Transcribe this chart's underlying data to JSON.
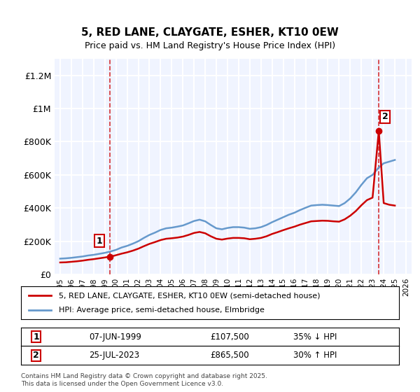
{
  "title": "5, RED LANE, CLAYGATE, ESHER, KT10 0EW",
  "subtitle": "Price paid vs. HM Land Registry's House Price Index (HPI)",
  "ylabel_ticks": [
    "£0",
    "£200K",
    "£400K",
    "£600K",
    "£800K",
    "£1M",
    "£1.2M"
  ],
  "ytick_vals": [
    0,
    200000,
    400000,
    600000,
    800000,
    1000000,
    1200000
  ],
  "ylim": [
    0,
    1300000
  ],
  "xlim_start": 1994.5,
  "xlim_end": 2026.5,
  "transaction1": {
    "date": "07-JUN-1999",
    "price": 107500,
    "year": 1999.44,
    "label": "1",
    "pct": "35% ↓ HPI"
  },
  "transaction2": {
    "date": "25-JUL-2023",
    "price": 865500,
    "year": 2023.56,
    "label": "2",
    "pct": "30% ↑ HPI"
  },
  "legend_line1": "5, RED LANE, CLAYGATE, ESHER, KT10 0EW (semi-detached house)",
  "legend_line2": "HPI: Average price, semi-detached house, Elmbridge",
  "table_row1": "07-JUN-1999        £107,500        35% ↓ HPI",
  "table_row2": "25-JUL-2023        £865,500        30% ↑ HPI",
  "footnote": "Contains HM Land Registry data © Crown copyright and database right 2025.\nThis data is licensed under the Open Government Licence v3.0.",
  "line_color_red": "#cc0000",
  "line_color_blue": "#6699cc",
  "bg_color": "#f0f4ff",
  "grid_color": "#ffffff",
  "vline_color": "#cc0000",
  "hpi_years": [
    1995,
    1995.5,
    1996,
    1996.5,
    1997,
    1997.5,
    1998,
    1998.5,
    1999,
    1999.5,
    2000,
    2000.5,
    2001,
    2001.5,
    2002,
    2002.5,
    2003,
    2003.5,
    2004,
    2004.5,
    2005,
    2005.5,
    2006,
    2006.5,
    2007,
    2007.5,
    2008,
    2008.5,
    2009,
    2009.5,
    2010,
    2010.5,
    2011,
    2011.5,
    2012,
    2012.5,
    2013,
    2013.5,
    2014,
    2014.5,
    2015,
    2015.5,
    2016,
    2016.5,
    2017,
    2017.5,
    2018,
    2018.5,
    2019,
    2019.5,
    2020,
    2020.5,
    2021,
    2021.5,
    2022,
    2022.5,
    2023,
    2023.5,
    2024,
    2024.5,
    2025
  ],
  "hpi_values": [
    95000,
    97000,
    100000,
    104000,
    108000,
    114000,
    118000,
    124000,
    130000,
    138000,
    148000,
    162000,
    172000,
    185000,
    200000,
    220000,
    238000,
    252000,
    268000,
    278000,
    282000,
    288000,
    295000,
    308000,
    322000,
    330000,
    320000,
    298000,
    278000,
    272000,
    280000,
    285000,
    285000,
    282000,
    275000,
    278000,
    285000,
    298000,
    315000,
    330000,
    345000,
    360000,
    372000,
    388000,
    402000,
    415000,
    418000,
    420000,
    418000,
    415000,
    412000,
    430000,
    458000,
    495000,
    540000,
    580000,
    600000,
    640000,
    670000,
    680000,
    690000
  ],
  "price_years": [
    1995,
    1995.5,
    1996,
    1996.5,
    1997,
    1997.5,
    1998,
    1998.5,
    1999,
    1999.44,
    1999.8,
    2000.5,
    2001,
    2001.5,
    2002,
    2002.5,
    2003,
    2003.5,
    2004,
    2004.5,
    2005,
    2005.5,
    2006,
    2006.5,
    2007,
    2007.5,
    2008,
    2008.5,
    2009,
    2009.5,
    2010,
    2010.5,
    2011,
    2011.5,
    2012,
    2012.5,
    2013,
    2013.5,
    2014,
    2014.5,
    2015,
    2015.5,
    2016,
    2016.5,
    2017,
    2017.5,
    2018,
    2018.5,
    2019,
    2019.5,
    2020,
    2020.5,
    2021,
    2021.5,
    2022,
    2022.5,
    2023,
    2023.56,
    2024,
    2024.5,
    2025
  ],
  "price_values": [
    72000,
    73000,
    76000,
    79000,
    83000,
    88000,
    92000,
    97000,
    102000,
    107500,
    112000,
    125000,
    133000,
    143000,
    155000,
    170000,
    184000,
    195000,
    207000,
    215000,
    218000,
    222000,
    228000,
    238000,
    250000,
    256000,
    248000,
    230000,
    215000,
    210000,
    216000,
    220000,
    220000,
    218000,
    212000,
    215000,
    220000,
    230000,
    244000,
    255000,
    267000,
    278000,
    288000,
    300000,
    310000,
    320000,
    322000,
    324000,
    323000,
    320000,
    318000,
    332000,
    354000,
    382000,
    417000,
    448000,
    463000,
    865500,
    430000,
    420000,
    415000
  ]
}
